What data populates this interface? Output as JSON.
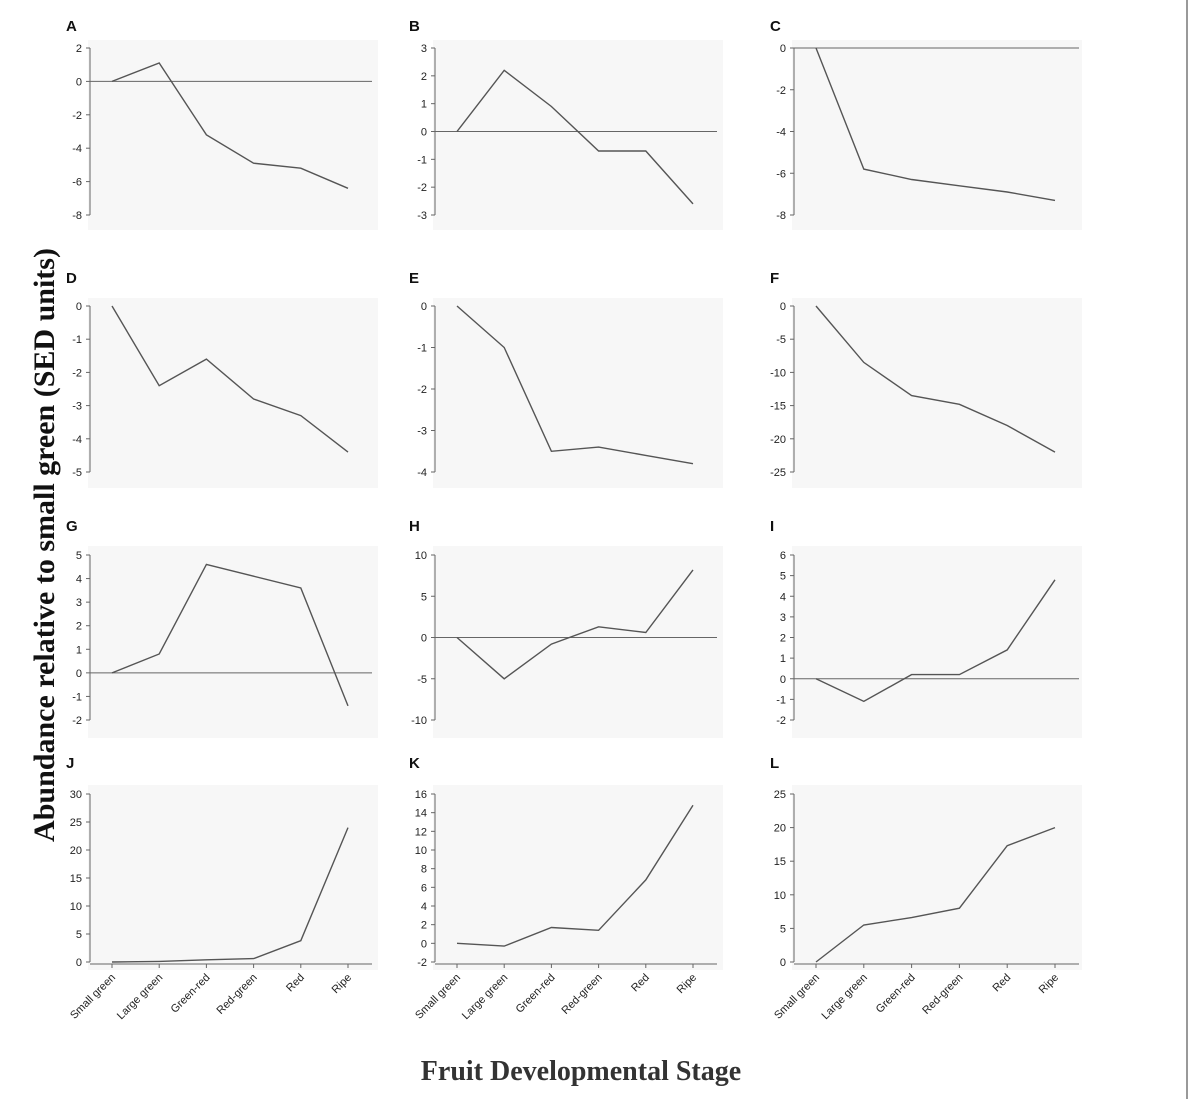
{
  "figure": {
    "ylabel": "Abundance relative to small green (SED units)",
    "xlabel": "Fruit Developmental Stage"
  },
  "colors": {
    "line": "#555555",
    "axis": "#666666",
    "panel_bg": "#f7f7f7",
    "text": "#222222"
  },
  "chart_data": [
    {
      "type": "line",
      "panel": "A",
      "categories": [
        "Small green",
        "Large green",
        "Green-red",
        "Red-green",
        "Red",
        "Ripe"
      ],
      "values": [
        0,
        1.1,
        -3.2,
        -4.9,
        -5.2,
        -6.4
      ],
      "ylim": [
        -8,
        2
      ],
      "yticks": [
        2,
        0,
        -2,
        -4,
        -6,
        -8
      ],
      "zero_line": true,
      "show_x_labels": false
    },
    {
      "type": "line",
      "panel": "B",
      "categories": [
        "Small green",
        "Large green",
        "Green-red",
        "Red-green",
        "Red",
        "Ripe"
      ],
      "values": [
        0,
        2.2,
        0.9,
        -0.7,
        -0.7,
        -2.6
      ],
      "ylim": [
        -3,
        3
      ],
      "yticks": [
        3,
        2,
        1,
        0,
        -1,
        -2,
        -3
      ],
      "zero_line": true,
      "show_x_labels": false
    },
    {
      "type": "line",
      "panel": "C",
      "categories": [
        "Small green",
        "Large green",
        "Green-red",
        "Red-green",
        "Red",
        "Ripe"
      ],
      "values": [
        0,
        -5.8,
        -6.3,
        -6.6,
        -6.9,
        -7.3
      ],
      "ylim": [
        -8,
        0
      ],
      "yticks": [
        0,
        -2,
        -4,
        -6,
        -8
      ],
      "zero_line": true,
      "show_x_labels": false
    },
    {
      "type": "line",
      "panel": "D",
      "categories": [
        "Small green",
        "Large green",
        "Green-red",
        "Red-green",
        "Red",
        "Ripe"
      ],
      "values": [
        0,
        -2.4,
        -1.6,
        -2.8,
        -3.3,
        -4.4
      ],
      "ylim": [
        -5,
        0
      ],
      "yticks": [
        0,
        -1,
        -2,
        -3,
        -4,
        -5
      ],
      "zero_line": false,
      "show_x_labels": false
    },
    {
      "type": "line",
      "panel": "E",
      "categories": [
        "Small green",
        "Large green",
        "Green-red",
        "Red-green",
        "Red",
        "Ripe"
      ],
      "values": [
        0,
        -1.0,
        -3.5,
        -3.4,
        -3.6,
        -3.8
      ],
      "ylim": [
        -4,
        0
      ],
      "yticks": [
        0,
        -1,
        -2,
        -3,
        -4
      ],
      "zero_line": false,
      "show_x_labels": false
    },
    {
      "type": "line",
      "panel": "F",
      "categories": [
        "Small green",
        "Large green",
        "Green-red",
        "Red-green",
        "Red",
        "Ripe"
      ],
      "values": [
        0,
        -8.5,
        -13.5,
        -14.8,
        -18,
        -22
      ],
      "ylim": [
        -25,
        0
      ],
      "yticks": [
        0,
        -5,
        -10,
        -15,
        -20,
        -25
      ],
      "zero_line": false,
      "show_x_labels": false
    },
    {
      "type": "line",
      "panel": "G",
      "categories": [
        "Small green",
        "Large green",
        "Green-red",
        "Red-green",
        "Red",
        "Ripe"
      ],
      "values": [
        0,
        0.8,
        4.6,
        4.1,
        3.6,
        -1.4
      ],
      "ylim": [
        -2,
        5
      ],
      "yticks": [
        5,
        4,
        3,
        2,
        1,
        0,
        -1,
        -2
      ],
      "zero_line": true,
      "show_x_labels": false
    },
    {
      "type": "line",
      "panel": "H",
      "categories": [
        "Small green",
        "Large green",
        "Green-red",
        "Red-green",
        "Red",
        "Ripe"
      ],
      "values": [
        0,
        -5,
        -0.8,
        1.3,
        0.6,
        8.2
      ],
      "ylim": [
        -10,
        10
      ],
      "yticks": [
        10,
        5,
        0,
        -5,
        -10
      ],
      "zero_line": true,
      "show_x_labels": false
    },
    {
      "type": "line",
      "panel": "I",
      "categories": [
        "Small green",
        "Large green",
        "Green-red",
        "Red-green",
        "Red",
        "Ripe"
      ],
      "values": [
        0,
        -1.1,
        0.2,
        0.2,
        1.4,
        4.8
      ],
      "ylim": [
        -2,
        6
      ],
      "yticks": [
        6,
        5,
        4,
        3,
        2,
        1,
        0,
        -1,
        -2
      ],
      "zero_line": true,
      "show_x_labels": false
    },
    {
      "type": "line",
      "panel": "J",
      "categories": [
        "Small green",
        "Large green",
        "Green-red",
        "Red-green",
        "Red",
        "Ripe"
      ],
      "values": [
        0,
        0.1,
        0.4,
        0.6,
        3.8,
        24
      ],
      "ylim": [
        0,
        30
      ],
      "yticks": [
        30,
        25,
        20,
        15,
        10,
        5,
        0
      ],
      "zero_line": false,
      "show_x_labels": true
    },
    {
      "type": "line",
      "panel": "K",
      "categories": [
        "Small green",
        "Large green",
        "Green-red",
        "Red-green",
        "Red",
        "Ripe"
      ],
      "values": [
        0,
        -0.3,
        1.7,
        1.4,
        6.8,
        14.8
      ],
      "ylim": [
        -2,
        16
      ],
      "yticks": [
        16,
        14,
        12,
        10,
        8,
        6,
        4,
        2,
        0,
        -2
      ],
      "zero_line": false,
      "show_x_labels": true
    },
    {
      "type": "line",
      "panel": "L",
      "categories": [
        "Small green",
        "Large green",
        "Green-red",
        "Red-green",
        "Red",
        "Ripe"
      ],
      "values": [
        0,
        5.5,
        6.6,
        8,
        17.3,
        20
      ],
      "ylim": [
        0,
        25
      ],
      "yticks": [
        25,
        20,
        15,
        10,
        5,
        0
      ],
      "zero_line": false,
      "show_x_labels": true
    }
  ]
}
